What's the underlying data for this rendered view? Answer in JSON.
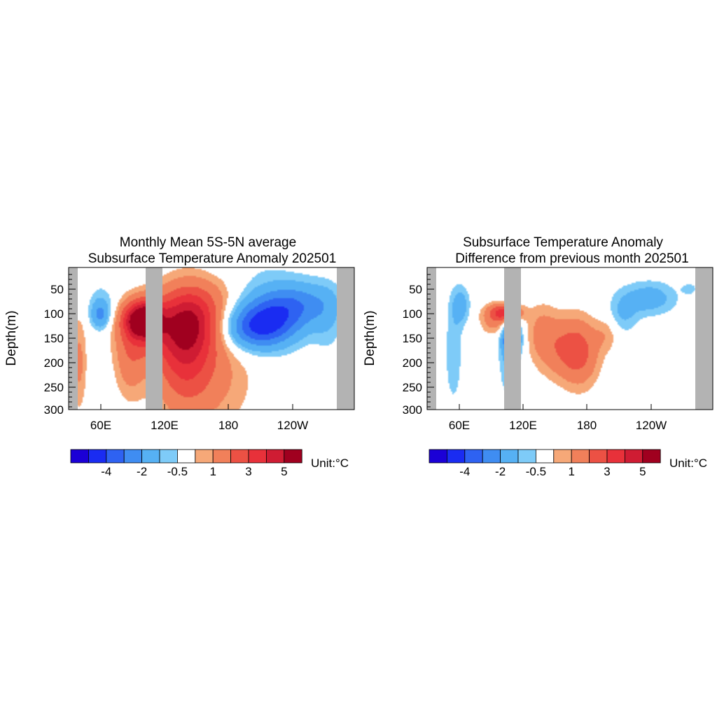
{
  "chart_data": [
    {
      "type": "heatmap",
      "title_line1": "Monthly Mean 5S-5N average",
      "title_line2": "Subsurface Temperature Anomaly 202501",
      "ylabel": "Depth(m)",
      "x_ticks": [
        "60E",
        "120E",
        "180",
        "120W"
      ],
      "y_ticks": [
        "50",
        "100",
        "150",
        "200",
        "250",
        "300"
      ],
      "ylim": [
        300,
        0
      ],
      "colorbar_labels": [
        "-4",
        "-2",
        "-0.5",
        "1",
        "3",
        "5"
      ],
      "unit_label": "Unit:°C",
      "features": [
        {
          "lon": 90,
          "depth": 110,
          "value": 5.5,
          "sx": 12,
          "sy": 26
        },
        {
          "lon": 92,
          "depth": 130,
          "value": 2.0,
          "sx": 18,
          "sy": 45
        },
        {
          "lon": 78,
          "depth": 200,
          "value": 1.3,
          "sx": 10,
          "sy": 55
        },
        {
          "lon": 50,
          "depth": 100,
          "value": -1.8,
          "sx": 6,
          "sy": 20
        },
        {
          "lon": 52,
          "depth": 80,
          "value": -0.8,
          "sx": 10,
          "sy": 35
        },
        {
          "lon": 30,
          "depth": 200,
          "value": 1.2,
          "sx": 5,
          "sy": 70
        },
        {
          "lon": 135,
          "depth": 110,
          "value": 3.6,
          "sx": 20,
          "sy": 50
        },
        {
          "lon": 128,
          "depth": 180,
          "value": 2.4,
          "sx": 18,
          "sy": 75
        },
        {
          "lon": 150,
          "depth": 210,
          "value": 1.4,
          "sx": 30,
          "sy": 90
        },
        {
          "lon": 170,
          "depth": 60,
          "value": 1.0,
          "sx": 25,
          "sy": 40
        },
        {
          "lon": 200,
          "depth": 130,
          "value": -3.3,
          "sx": 22,
          "sy": 30
        },
        {
          "lon": 220,
          "depth": 90,
          "value": -2.3,
          "sx": 25,
          "sy": 32
        },
        {
          "lon": 190,
          "depth": 80,
          "value": -1.2,
          "sx": 35,
          "sy": 65
        },
        {
          "lon": 245,
          "depth": 70,
          "value": -1.0,
          "sx": 22,
          "sy": 30
        },
        {
          "lon": 265,
          "depth": 110,
          "value": -0.7,
          "sx": 10,
          "sy": 50
        }
      ]
    },
    {
      "type": "heatmap",
      "title_line1": "Subsurface Temperature Anomaly",
      "title_line2": "Difference from previous month 202501",
      "ylabel": "Depth(m)",
      "x_ticks": [
        "60E",
        "120E",
        "180",
        "120W"
      ],
      "y_ticks": [
        "50",
        "100",
        "150",
        "200",
        "250",
        "300"
      ],
      "ylim": [
        300,
        0
      ],
      "colorbar_labels": [
        "-4",
        "-2",
        "-0.5",
        "1",
        "3",
        "5"
      ],
      "unit_label": "Unit:°C",
      "features": [
        {
          "lon": 95,
          "depth": 95,
          "value": 3.2,
          "sx": 10,
          "sy": 12
        },
        {
          "lon": 85,
          "depth": 110,
          "value": 1.5,
          "sx": 10,
          "sy": 22
        },
        {
          "lon": 100,
          "depth": 150,
          "value": -3.6,
          "sx": 6,
          "sy": 22
        },
        {
          "lon": 98,
          "depth": 190,
          "value": -1.2,
          "sx": 7,
          "sy": 60
        },
        {
          "lon": 52,
          "depth": 80,
          "value": -1.4,
          "sx": 6,
          "sy": 28
        },
        {
          "lon": 45,
          "depth": 180,
          "value": -0.9,
          "sx": 6,
          "sy": 80
        },
        {
          "lon": 150,
          "depth": 170,
          "value": 1.8,
          "sx": 18,
          "sy": 45
        },
        {
          "lon": 165,
          "depth": 185,
          "value": 1.4,
          "sx": 12,
          "sy": 50
        },
        {
          "lon": 128,
          "depth": 130,
          "value": 0.9,
          "sx": 10,
          "sy": 40
        },
        {
          "lon": 230,
          "depth": 65,
          "value": -1.5,
          "sx": 18,
          "sy": 25
        },
        {
          "lon": 205,
          "depth": 100,
          "value": -1.0,
          "sx": 10,
          "sy": 30
        },
        {
          "lon": 190,
          "depth": 140,
          "value": 0.8,
          "sx": 8,
          "sy": 25
        },
        {
          "lon": 268,
          "depth": 45,
          "value": -0.8,
          "sx": 5,
          "sy": 8
        }
      ]
    }
  ]
}
